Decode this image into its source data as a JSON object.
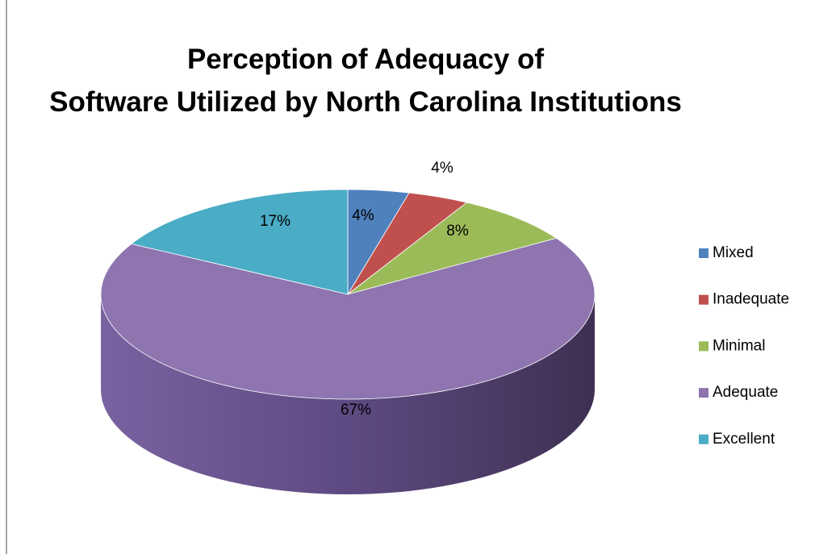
{
  "chart_data": {
    "type": "pie3d",
    "title": "Perception of Adequacy of Software Utilized by North Carolina Institutions",
    "categories": [
      "Mixed",
      "Inadequate",
      "Minimal",
      "Adequate",
      "Excellent"
    ],
    "values": [
      4,
      4,
      8,
      67,
      17
    ],
    "value_labels": [
      "4%",
      "4%",
      "8%",
      "67%",
      "17%"
    ],
    "colors": [
      "#4f81bd",
      "#c0504d",
      "#9bbb59",
      "#8e75b0",
      "#4bacc6"
    ],
    "legend": "right"
  }
}
